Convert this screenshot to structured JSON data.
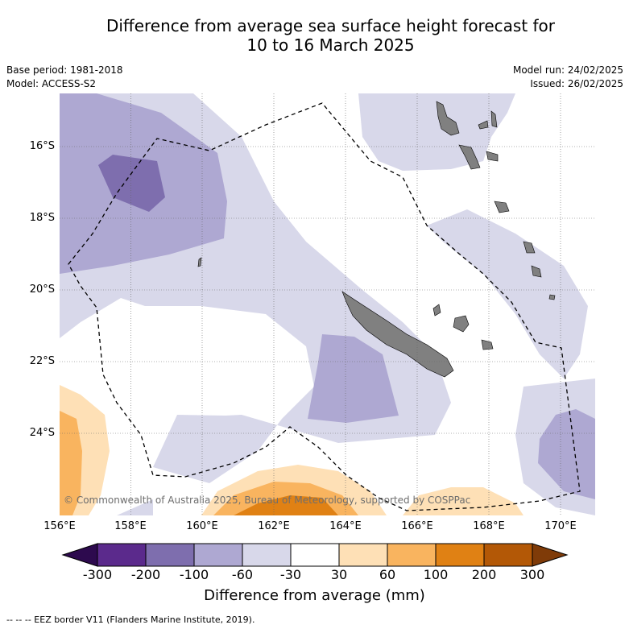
{
  "title_line1": "Difference from average sea surface height forecast for",
  "title_line2": "10 to 16 March 2025",
  "base_period": "Base period: 1981-2018",
  "model": "Model: ACCESS-S2",
  "model_run": "Model run: 24/02/2025",
  "issued": "Issued: 26/02/2025",
  "x_ticks": [
    "156°E",
    "158°E",
    "160°E",
    "162°E",
    "164°E",
    "166°E",
    "168°E",
    "170°E"
  ],
  "y_ticks": [
    "16°S",
    "18°S",
    "20°S",
    "22°S",
    "24°S"
  ],
  "colorbar": {
    "title": "Difference from average (mm)",
    "labels": [
      "-300",
      "-200",
      "-100",
      "-60",
      "-30",
      "30",
      "60",
      "100",
      "200",
      "300"
    ],
    "colors": [
      "#2d0a4e",
      "#5b2a8c",
      "#7e6eae",
      "#aea8d2",
      "#d8d8ea",
      "#ffffff",
      "#fee0b6",
      "#f9b45f",
      "#e08114",
      "#b35806",
      "#7f3b08"
    ]
  },
  "copyright": "© Commonwealth of Australia 2025, Bureau of Meteorology, supported by COSPPac",
  "footer": "-- -- -- EEZ border V11 (Flanders Marine Institute, 2019).",
  "colors": {
    "land": "#808080",
    "eez_border": "#000000",
    "grid": "#666666"
  }
}
